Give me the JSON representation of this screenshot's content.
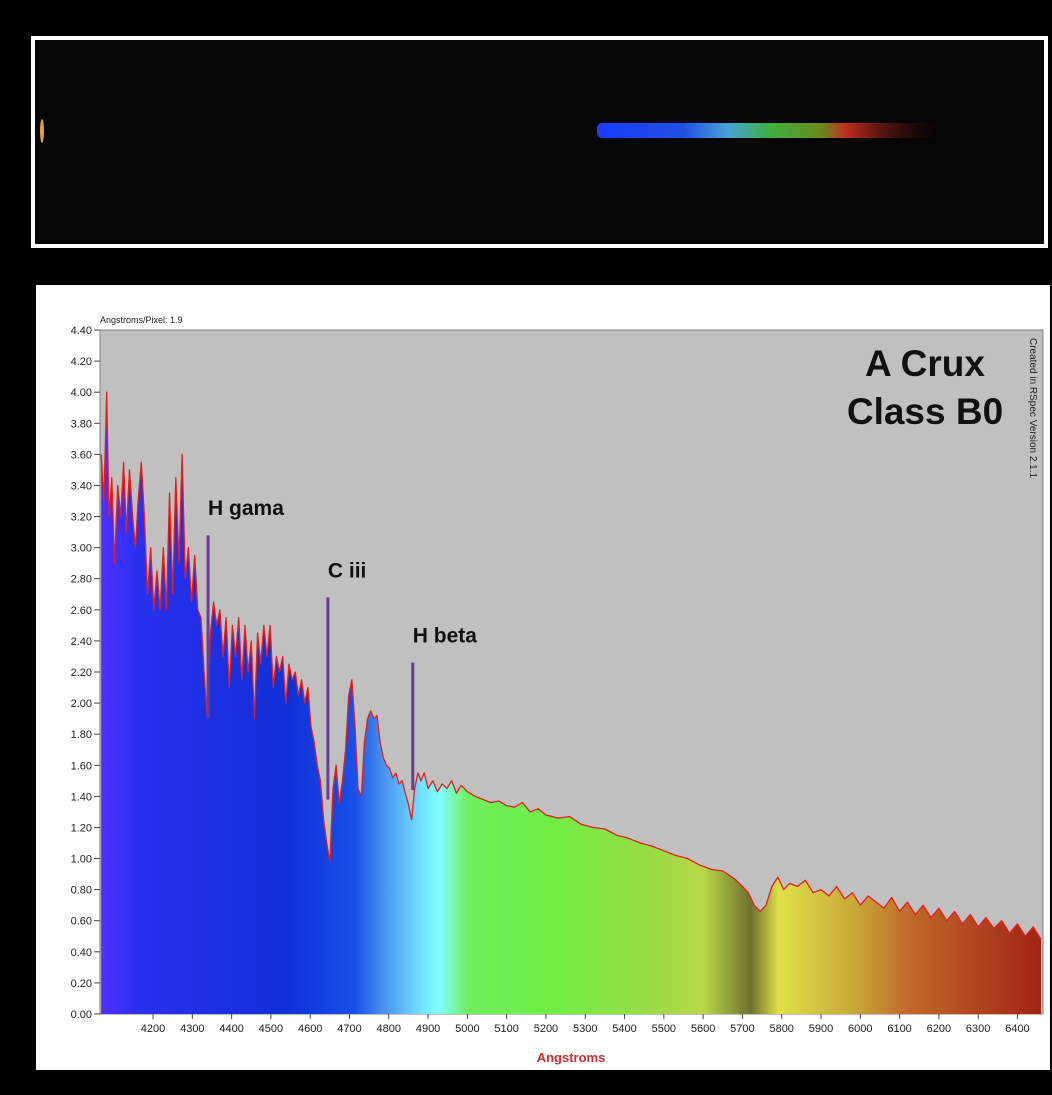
{
  "chart_data": {
    "type": "area",
    "title": "A Crux",
    "subtitle": "Class B0",
    "header_note": "Angstroms/Pixel: 1.9",
    "side_note": "Created in RSpec Version 2.1.1",
    "x_label": "Angstroms",
    "color": "#e02020",
    "xlim": [
      4065,
      6465
    ],
    "ylim": [
      0,
      4.4
    ],
    "xticks": [
      4200,
      4300,
      4400,
      4500,
      4600,
      4700,
      4800,
      4900,
      5000,
      5100,
      5200,
      5300,
      5400,
      5500,
      5600,
      5700,
      5800,
      5900,
      6000,
      6100,
      6200,
      6300,
      6400
    ],
    "yticks": [
      {
        "value": 0,
        "label": "0.00"
      },
      {
        "value": 0.2,
        "label": "0.20"
      },
      {
        "value": 0.4,
        "label": "0.40"
      },
      {
        "value": 0.6,
        "label": "0.60"
      },
      {
        "value": 0.8,
        "label": "0.80"
      },
      {
        "value": 1,
        "label": "1.00"
      },
      {
        "value": 1.2,
        "label": "1.20"
      },
      {
        "value": 1.4,
        "label": "1.40"
      },
      {
        "value": 1.6,
        "label": "1.60"
      },
      {
        "value": 1.8,
        "label": "1.80"
      },
      {
        "value": 2,
        "label": "2.00"
      },
      {
        "value": 2.2,
        "label": "2.20"
      },
      {
        "value": 2.4,
        "label": "2.40"
      },
      {
        "value": 2.6,
        "label": "2.60"
      },
      {
        "value": 2.8,
        "label": "2.80"
      },
      {
        "value": 3,
        "label": "3.00"
      },
      {
        "value": 3.2,
        "label": "3.20"
      },
      {
        "value": 3.4,
        "label": "3.40"
      },
      {
        "value": 3.6,
        "label": "3.60"
      },
      {
        "value": 3.8,
        "label": "3.80"
      },
      {
        "value": 4,
        "label": "4.00"
      },
      {
        "value": 4.2,
        "label": "4.20"
      },
      {
        "value": 4.4,
        "label": "4.40"
      }
    ],
    "annotations": [
      {
        "text": "H gama",
        "x": 4340,
        "y_top": 3.08,
        "y_bottom": 1.9
      },
      {
        "text": "C iii",
        "x": 4645,
        "y_top": 2.68,
        "y_bottom": 1.38
      },
      {
        "text": "H beta",
        "x": 4861,
        "y_top": 2.26,
        "y_bottom": 1.44
      }
    ],
    "x": [
      4068,
      4075,
      4082,
      4088,
      4095,
      4102,
      4110,
      4118,
      4125,
      4132,
      4140,
      4148,
      4155,
      4162,
      4170,
      4178,
      4186,
      4194,
      4202,
      4210,
      4218,
      4226,
      4234,
      4242,
      4250,
      4258,
      4266,
      4274,
      4282,
      4290,
      4298,
      4306,
      4314,
      4322,
      4330,
      4338,
      4346,
      4354,
      4362,
      4370,
      4378,
      4386,
      4394,
      4402,
      4410,
      4418,
      4426,
      4434,
      4442,
      4450,
      4458,
      4466,
      4474,
      4482,
      4490,
      4498,
      4506,
      4514,
      4522,
      4530,
      4538,
      4546,
      4554,
      4562,
      4570,
      4578,
      4586,
      4594,
      4602,
      4610,
      4618,
      4626,
      4634,
      4642,
      4650,
      4658,
      4666,
      4674,
      4682,
      4690,
      4698,
      4706,
      4714,
      4722,
      4730,
      4738,
      4746,
      4754,
      4762,
      4770,
      4778,
      4786,
      4794,
      4802,
      4810,
      4818,
      4826,
      4834,
      4842,
      4850,
      4858,
      4866,
      4874,
      4882,
      4890,
      4900,
      4912,
      4924,
      4936,
      4948,
      4960,
      4972,
      4984,
      5000,
      5020,
      5040,
      5060,
      5080,
      5100,
      5120,
      5140,
      5160,
      5180,
      5200,
      5230,
      5260,
      5290,
      5320,
      5350,
      5380,
      5410,
      5440,
      5470,
      5500,
      5530,
      5560,
      5590,
      5620,
      5650,
      5680,
      5700,
      5715,
      5730,
      5745,
      5760,
      5775,
      5790,
      5805,
      5820,
      5840,
      5860,
      5880,
      5900,
      5920,
      5940,
      5960,
      5980,
      6000,
      6020,
      6040,
      6060,
      6080,
      6100,
      6120,
      6140,
      6160,
      6180,
      6200,
      6220,
      6240,
      6260,
      6280,
      6300,
      6320,
      6340,
      6360,
      6380,
      6400,
      6420,
      6440,
      6460
    ],
    "values": [
      3.6,
      3.3,
      4.0,
      3.2,
      3.45,
      2.9,
      3.4,
      3.2,
      3.55,
      3.1,
      3.5,
      3.2,
      3.0,
      3.3,
      3.55,
      3.2,
      2.7,
      3.0,
      2.6,
      2.85,
      2.6,
      3.0,
      2.6,
      3.35,
      2.7,
      3.45,
      2.9,
      3.6,
      2.8,
      3.0,
      2.65,
      2.95,
      2.6,
      2.55,
      2.2,
      1.9,
      2.45,
      2.65,
      2.5,
      2.6,
      2.3,
      2.55,
      2.1,
      2.5,
      2.3,
      2.55,
      2.15,
      2.5,
      2.2,
      2.4,
      1.9,
      2.45,
      2.25,
      2.5,
      2.3,
      2.5,
      2.1,
      2.3,
      2.2,
      2.3,
      2.0,
      2.25,
      2.15,
      2.2,
      2.05,
      2.15,
      2.0,
      2.1,
      1.85,
      1.75,
      1.6,
      1.5,
      1.25,
      1.1,
      0.98,
      1.45,
      1.6,
      1.35,
      1.5,
      1.7,
      2.05,
      2.15,
      1.85,
      1.45,
      1.4,
      1.75,
      1.9,
      1.95,
      1.9,
      1.92,
      1.75,
      1.65,
      1.6,
      1.58,
      1.52,
      1.55,
      1.48,
      1.5,
      1.42,
      1.35,
      1.25,
      1.45,
      1.55,
      1.5,
      1.55,
      1.45,
      1.5,
      1.43,
      1.48,
      1.45,
      1.5,
      1.42,
      1.47,
      1.43,
      1.4,
      1.38,
      1.36,
      1.37,
      1.34,
      1.33,
      1.36,
      1.3,
      1.32,
      1.28,
      1.26,
      1.27,
      1.22,
      1.2,
      1.19,
      1.15,
      1.13,
      1.1,
      1.08,
      1.05,
      1.02,
      1.0,
      0.96,
      0.93,
      0.92,
      0.87,
      0.82,
      0.78,
      0.7,
      0.66,
      0.7,
      0.82,
      0.88,
      0.8,
      0.84,
      0.82,
      0.86,
      0.78,
      0.8,
      0.76,
      0.82,
      0.74,
      0.78,
      0.7,
      0.76,
      0.72,
      0.68,
      0.75,
      0.66,
      0.72,
      0.64,
      0.7,
      0.62,
      0.68,
      0.6,
      0.66,
      0.58,
      0.64,
      0.56,
      0.62,
      0.55,
      0.6,
      0.52,
      0.58,
      0.5,
      0.56,
      0.48
    ]
  }
}
